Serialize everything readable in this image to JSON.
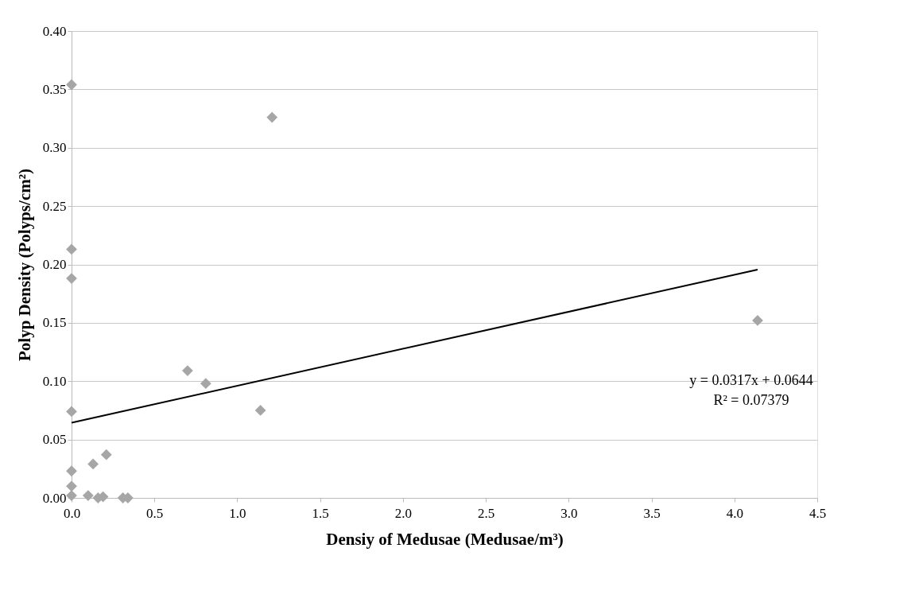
{
  "chart_data": {
    "type": "scatter",
    "xlabel": "Densiy of Medusae (Medusae/m³)",
    "ylabel": "Polyp Density (Polyps/cm²)",
    "xlim": [
      0,
      4.5
    ],
    "ylim": [
      0,
      0.4
    ],
    "xticks": [
      {
        "value": 0,
        "label": "0.0"
      },
      {
        "value": 0.5,
        "label": "0.5"
      },
      {
        "value": 1,
        "label": "1.0"
      },
      {
        "value": 1.5,
        "label": "1.5"
      },
      {
        "value": 2,
        "label": "2.0"
      },
      {
        "value": 2.5,
        "label": "2.5"
      },
      {
        "value": 3,
        "label": "3.0"
      },
      {
        "value": 3.5,
        "label": "3.5"
      },
      {
        "value": 4,
        "label": "4.0"
      },
      {
        "value": 4.5,
        "label": "4.5"
      }
    ],
    "yticks": [
      {
        "value": 0,
        "label": "0.00"
      },
      {
        "value": 0.05,
        "label": "0.05"
      },
      {
        "value": 0.1,
        "label": "0.10"
      },
      {
        "value": 0.15,
        "label": "0.15"
      },
      {
        "value": 0.2,
        "label": "0.20"
      },
      {
        "value": 0.25,
        "label": "0.25"
      },
      {
        "value": 0.3,
        "label": "0.30"
      },
      {
        "value": 0.35,
        "label": "0.35"
      },
      {
        "value": 0.4,
        "label": "0.40"
      }
    ],
    "grid": "y",
    "series": [
      {
        "color": "#a6a6a6",
        "marker": "diamond",
        "x": [
          0,
          0,
          0,
          0,
          0,
          0,
          0,
          1.21,
          4.14,
          0.7,
          0.81,
          1.14,
          0.13,
          0.21,
          0.1,
          0.16,
          0.19,
          0.31,
          0.34
        ],
        "values": [
          0.354,
          0.213,
          0.188,
          0.074,
          0.023,
          0.01,
          0.002,
          0.326,
          0.152,
          0.109,
          0.098,
          0.075,
          0.029,
          0.037,
          0.002,
          0.0,
          0.001,
          0.0,
          0.0
        ]
      },
      {
        "type": "line",
        "color": "#000000",
        "line_style": "solid",
        "x": [
          0,
          4.14
        ],
        "values": [
          0.0644,
          0.1956
        ]
      }
    ],
    "annotations": [
      "y = 0.0317x + 0.0644",
      "R² = 0.07379"
    ]
  }
}
